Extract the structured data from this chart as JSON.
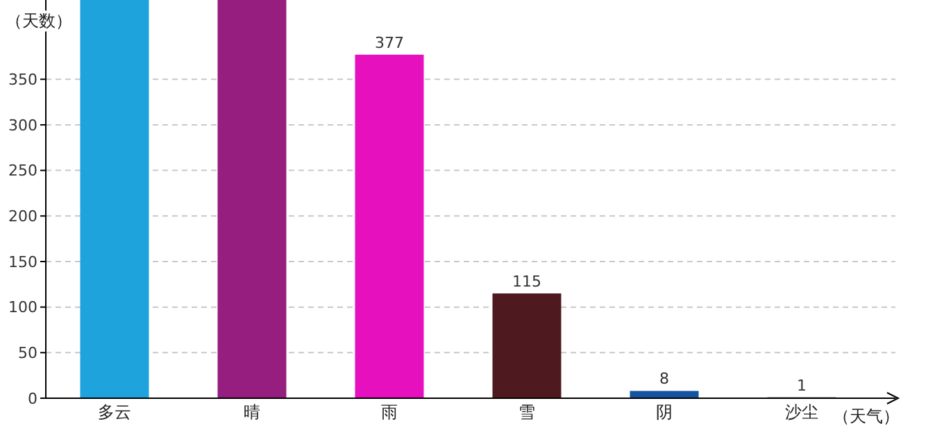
{
  "chart_data": {
    "type": "bar",
    "xlabel": "（天气）",
    "ylabel": "（天数）",
    "categories": [
      "多云",
      "晴",
      "雨",
      "雪",
      "阴",
      "沙尘"
    ],
    "values": [
      437,
      437,
      377,
      115,
      8,
      1
    ],
    "value_labels": [
      null,
      null,
      "377",
      "115",
      "8",
      "1"
    ],
    "colors": [
      "#1ea3dd",
      "#951e7e",
      "#e610bf",
      "#4e1a1f",
      "#1553a0",
      "#2a2a2a"
    ],
    "ylim": [
      0,
      437
    ],
    "yticks": [
      0,
      50,
      100,
      150,
      200,
      250,
      300,
      350
    ],
    "grid": "y"
  }
}
